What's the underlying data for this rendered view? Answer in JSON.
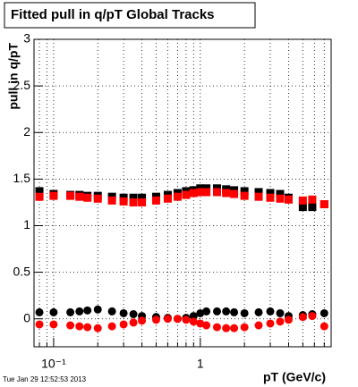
{
  "chart_data": {
    "type": "scatter",
    "title": "Fitted pull in q/pT  Global Tracks",
    "y_label": "pull in q/pT",
    "x_label": "pT (GeV/c)",
    "timestamp": "Tue Jan 29 12:52:53 2013",
    "log_x": true,
    "grid": true,
    "xlim": [
      0.0735,
      7.8
    ],
    "xticks": [
      {
        "value": 0.1,
        "label": "10⁻¹"
      },
      1
    ],
    "ylim": [
      -0.3,
      3
    ],
    "yticks": [
      0,
      0.5,
      1,
      1.5,
      2,
      2.5,
      3
    ],
    "x": [
      0.08,
      0.1,
      0.13,
      0.15,
      0.17,
      0.2,
      0.25,
      0.3,
      0.35,
      0.4,
      0.5,
      0.6,
      0.7,
      0.8,
      0.9,
      1,
      1.1,
      1.3,
      1.5,
      1.7,
      2,
      2.5,
      3,
      3.5,
      4,
      5,
      5.8,
      7
    ],
    "series": [
      {
        "color": "#000000",
        "marker": "square",
        "values": [
          1.37,
          1.34,
          1.33,
          1.33,
          1.32,
          1.32,
          1.31,
          1.3,
          1.3,
          1.3,
          1.31,
          1.33,
          1.35,
          1.37,
          1.38,
          1.4,
          1.4,
          1.4,
          1.39,
          1.38,
          1.37,
          1.36,
          1.35,
          1.34,
          1.3,
          1.2,
          1.2,
          1.23
        ]
      },
      {
        "color": "#ff0000",
        "marker": "square",
        "values": [
          1.31,
          1.32,
          1.32,
          1.31,
          1.3,
          1.29,
          1.27,
          1.26,
          1.25,
          1.25,
          1.27,
          1.29,
          1.31,
          1.33,
          1.35,
          1.36,
          1.36,
          1.36,
          1.35,
          1.34,
          1.32,
          1.31,
          1.3,
          1.29,
          1.28,
          1.27,
          1.28,
          1.23
        ]
      },
      {
        "color": "#000000",
        "marker": "circle",
        "values": [
          0.07,
          0.07,
          0.07,
          0.08,
          0.09,
          0.1,
          0.08,
          0.06,
          0.05,
          0.03,
          0.02,
          0.01,
          0.0,
          0.01,
          0.03,
          0.06,
          0.08,
          0.08,
          0.08,
          0.07,
          0.06,
          0.07,
          0.08,
          0.06,
          0.03,
          0.04,
          0.05,
          0.06
        ]
      },
      {
        "color": "#ff0000",
        "marker": "circle",
        "values": [
          -0.06,
          -0.06,
          -0.07,
          -0.08,
          -0.09,
          -0.1,
          -0.08,
          -0.06,
          -0.04,
          -0.02,
          -0.01,
          0.0,
          0.0,
          -0.01,
          -0.03,
          -0.05,
          -0.07,
          -0.09,
          -0.1,
          -0.1,
          -0.09,
          -0.07,
          -0.05,
          -0.03,
          -0.01,
          0.02,
          0.03,
          -0.08
        ]
      }
    ]
  }
}
